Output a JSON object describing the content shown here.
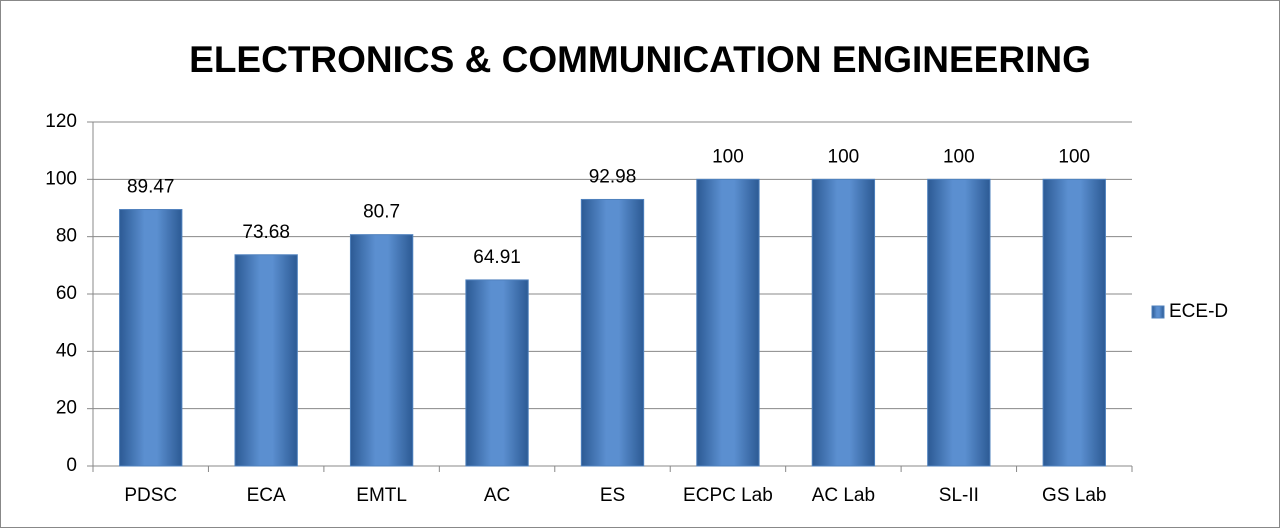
{
  "chart_data": {
    "type": "bar",
    "title": "ELECTRONICS & COMMUNICATION ENGINEERING",
    "categories": [
      "PDSC",
      "ECA",
      "EMTL",
      "AC",
      "ES",
      "ECPC Lab",
      "AC Lab",
      "SL-II",
      "GS Lab"
    ],
    "series": [
      {
        "name": "ECE-D",
        "color": "#4f81bd",
        "values": [
          89.47,
          73.68,
          80.7,
          64.91,
          92.98,
          100,
          100,
          100,
          100
        ]
      }
    ],
    "ylim": [
      0,
      120
    ],
    "yticks": [
      0,
      20,
      40,
      60,
      80,
      100,
      120
    ],
    "grid": true,
    "legend": "right",
    "data_labels": true
  }
}
